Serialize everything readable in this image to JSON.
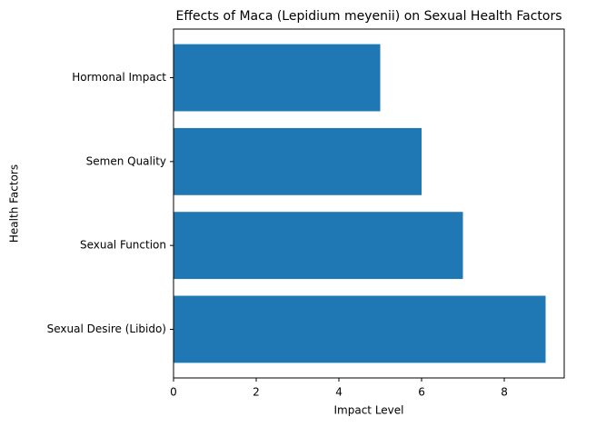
{
  "chart_data": {
    "type": "barh",
    "title": "Effects of Maca (Lepidium meyenii) on Sexual Health Factors",
    "x_label": "Impact Level",
    "y_label": "Health Factors",
    "categories": [
      "Sexual Desire (Libido)",
      "Sexual Function",
      "Semen Quality",
      "Hormonal Impact"
    ],
    "values": [
      9,
      7,
      6,
      5
    ],
    "color": "#1f77b4",
    "xlim": [
      0,
      9.45
    ],
    "xticks": [
      0,
      2,
      4,
      6,
      8
    ],
    "grid": false
  }
}
